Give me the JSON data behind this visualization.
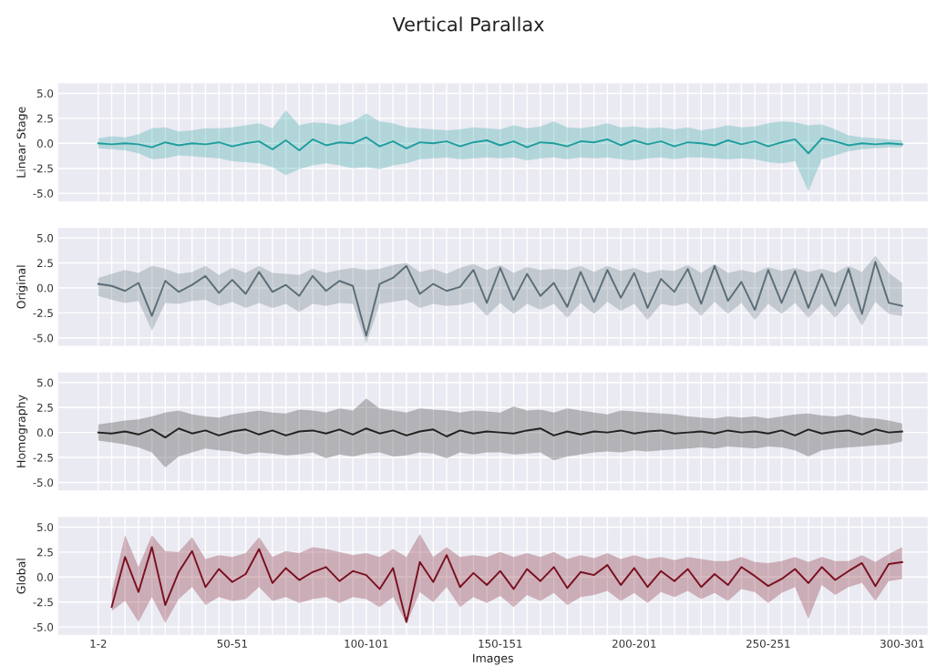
{
  "chart_data": [
    {
      "type": "line",
      "title": "Vertical Parallax",
      "ylabel": "Linear Stage",
      "ylim": [
        -5.8,
        6
      ],
      "yticks": [
        {
          "value": -5,
          "label": "-5.0"
        },
        {
          "value": -2.5,
          "label": "-2.5"
        },
        {
          "value": 0,
          "label": "0.0"
        },
        {
          "value": 2.5,
          "label": "2.5"
        },
        {
          "value": 5,
          "label": "5.0"
        }
      ],
      "tick_labels": "y",
      "grid": true,
      "categories": [
        null,
        null,
        null,
        null,
        null,
        null,
        null,
        null,
        null,
        null,
        null,
        null,
        null,
        null,
        null,
        null,
        null,
        null,
        null,
        null,
        null,
        null,
        null,
        null,
        null,
        null,
        null,
        null,
        null,
        null,
        null,
        null,
        null,
        null,
        null,
        null,
        null,
        null,
        null,
        null,
        null,
        null,
        null,
        null,
        null,
        null,
        null,
        null,
        null,
        null,
        null,
        null,
        null,
        null,
        null,
        null,
        null,
        null,
        null,
        null,
        null
      ],
      "series": [
        {
          "color": "#1f9e9e",
          "values": [
            0,
            -0.1,
            0,
            -0.1,
            -0.4,
            0.1,
            -0.2,
            0,
            -0.1,
            0.1,
            -0.3,
            0,
            0.2,
            -0.6,
            0.3,
            -0.7,
            0.4,
            -0.2,
            0.1,
            0,
            0.6,
            -0.3,
            0.2,
            -0.5,
            0.1,
            0,
            0.2,
            -0.3,
            0.1,
            0.3,
            -0.2,
            0.2,
            -0.4,
            0.1,
            0,
            -0.3,
            0.2,
            0.1,
            0.4,
            -0.2,
            0.3,
            -0.1,
            0.2,
            -0.3,
            0.1,
            0,
            -0.2,
            0.3,
            -0.1,
            0.2,
            -0.3,
            0.1,
            0.4,
            -1.0,
            0.5,
            0.2,
            -0.2,
            0,
            -0.1,
            0,
            -0.1
          ],
          "upper": [
            0.5,
            0.7,
            0.6,
            0.9,
            1.5,
            1.6,
            1.2,
            1.3,
            1.5,
            1.5,
            1.6,
            1.8,
            2.0,
            1.5,
            3.3,
            1.8,
            2.1,
            2.0,
            1.8,
            2.2,
            3.0,
            2.2,
            2.0,
            1.6,
            1.5,
            1.4,
            1.3,
            1.4,
            1.6,
            1.5,
            1.4,
            1.8,
            1.5,
            1.7,
            2.2,
            1.6,
            1.5,
            1.7,
            2.0,
            1.6,
            1.7,
            1.5,
            1.6,
            1.4,
            1.6,
            1.3,
            1.5,
            1.8,
            1.6,
            1.7,
            2.0,
            2.2,
            2.1,
            1.8,
            1.9,
            1.4,
            0.8,
            0.6,
            0.5,
            0.4,
            0.3
          ],
          "lower": [
            -0.5,
            -0.6,
            -0.7,
            -1.0,
            -1.6,
            -1.5,
            -1.2,
            -1.3,
            -1.4,
            -1.5,
            -1.8,
            -1.9,
            -2.0,
            -2.4,
            -3.2,
            -2.6,
            -2.2,
            -2.0,
            -2.2,
            -2.5,
            -2.4,
            -2.6,
            -2.2,
            -2.0,
            -1.6,
            -1.5,
            -1.4,
            -1.6,
            -1.5,
            -1.4,
            -1.5,
            -1.4,
            -1.7,
            -1.5,
            -1.4,
            -1.6,
            -1.4,
            -1.5,
            -1.4,
            -1.6,
            -1.7,
            -1.5,
            -1.4,
            -1.6,
            -1.4,
            -1.4,
            -1.5,
            -1.6,
            -1.5,
            -1.6,
            -1.9,
            -2.0,
            -1.8,
            -4.8,
            -1.6,
            -1.2,
            -0.8,
            -0.6,
            -0.5,
            -0.4,
            -0.4
          ]
        }
      ]
    },
    {
      "type": "line",
      "ylabel": "Original",
      "ylim": [
        -5.8,
        6
      ],
      "yticks": [
        {
          "value": -5,
          "label": "-5.0"
        },
        {
          "value": -2.5,
          "label": "-2.5"
        },
        {
          "value": 0,
          "label": "0.0"
        },
        {
          "value": 2.5,
          "label": "2.5"
        },
        {
          "value": 5,
          "label": "5.0"
        }
      ],
      "tick_labels": "y",
      "grid": true,
      "categories": [
        null,
        null,
        null,
        null,
        null,
        null,
        null,
        null,
        null,
        null,
        null,
        null,
        null,
        null,
        null,
        null,
        null,
        null,
        null,
        null,
        null,
        null,
        null,
        null,
        null,
        null,
        null,
        null,
        null,
        null,
        null,
        null,
        null,
        null,
        null,
        null,
        null,
        null,
        null,
        null,
        null,
        null,
        null,
        null,
        null,
        null,
        null,
        null,
        null,
        null,
        null,
        null,
        null,
        null,
        null,
        null,
        null,
        null,
        null,
        null,
        null
      ],
      "series": [
        {
          "color": "#5b6e78",
          "values": [
            0.4,
            0.2,
            -0.3,
            0.5,
            -2.8,
            0.7,
            -0.4,
            0.3,
            1.2,
            -0.5,
            0.8,
            -0.6,
            1.6,
            -0.4,
            0.3,
            -0.8,
            1.2,
            -0.3,
            0.7,
            0.2,
            -4.8,
            0.4,
            1.0,
            2.2,
            -0.6,
            0.4,
            -0.3,
            0.1,
            1.8,
            -1.5,
            2.0,
            -1.2,
            1.4,
            -0.8,
            0.5,
            -1.9,
            1.6,
            -1.4,
            1.8,
            -1.0,
            1.5,
            -2.0,
            0.9,
            -0.4,
            1.9,
            -1.6,
            2.2,
            -1.3,
            0.6,
            -2.2,
            1.8,
            -1.5,
            1.7,
            -2.0,
            1.4,
            -1.8,
            1.9,
            -2.6,
            2.6,
            -1.5,
            -1.8
          ],
          "upper": [
            1.0,
            1.4,
            1.8,
            1.5,
            2.2,
            1.9,
            1.4,
            1.6,
            2.2,
            1.3,
            2.0,
            1.5,
            2.2,
            1.5,
            1.4,
            1.3,
            1.9,
            1.5,
            1.8,
            2.0,
            1.8,
            1.9,
            2.3,
            2.5,
            1.6,
            1.9,
            1.4,
            2.0,
            2.4,
            1.8,
            2.3,
            1.5,
            2.1,
            1.8,
            1.9,
            1.8,
            2.2,
            1.6,
            2.2,
            1.7,
            2.0,
            1.5,
            1.8,
            1.7,
            2.3,
            1.5,
            2.4,
            1.5,
            1.8,
            1.5,
            2.1,
            1.7,
            2.0,
            1.6,
            1.9,
            1.5,
            2.2,
            1.6,
            3.2,
            1.5,
            0.5
          ],
          "lower": [
            -0.8,
            -1.2,
            -1.5,
            -1.3,
            -4.3,
            -1.5,
            -1.6,
            -1.3,
            -1.2,
            -1.8,
            -1.4,
            -2.0,
            -1.5,
            -2.0,
            -1.6,
            -2.4,
            -1.6,
            -1.8,
            -1.5,
            -1.6,
            -5.6,
            -1.6,
            -1.4,
            -1.2,
            -2.0,
            -1.6,
            -1.8,
            -1.7,
            -1.4,
            -2.8,
            -1.5,
            -2.6,
            -1.6,
            -2.2,
            -1.6,
            -3.0,
            -1.5,
            -2.6,
            -1.4,
            -2.3,
            -1.6,
            -3.2,
            -1.6,
            -1.8,
            -1.5,
            -2.8,
            -1.4,
            -2.6,
            -1.5,
            -3.2,
            -1.6,
            -2.6,
            -1.5,
            -3.0,
            -1.6,
            -3.0,
            -1.5,
            -3.8,
            -1.4,
            -2.6,
            -2.8
          ]
        }
      ]
    },
    {
      "type": "line",
      "ylabel": "Homography",
      "ylim": [
        -5.8,
        6
      ],
      "yticks": [
        {
          "value": -5,
          "label": "-5.0"
        },
        {
          "value": -2.5,
          "label": "-2.5"
        },
        {
          "value": 0,
          "label": "0.0"
        },
        {
          "value": 2.5,
          "label": "2.5"
        },
        {
          "value": 5,
          "label": "5.0"
        }
      ],
      "tick_labels": "y",
      "grid": true,
      "categories": [
        null,
        null,
        null,
        null,
        null,
        null,
        null,
        null,
        null,
        null,
        null,
        null,
        null,
        null,
        null,
        null,
        null,
        null,
        null,
        null,
        null,
        null,
        null,
        null,
        null,
        null,
        null,
        null,
        null,
        null,
        null,
        null,
        null,
        null,
        null,
        null,
        null,
        null,
        null,
        null,
        null,
        null,
        null,
        null,
        null,
        null,
        null,
        null,
        null,
        null,
        null,
        null,
        null,
        null,
        null,
        null,
        null,
        null,
        null,
        null,
        null
      ],
      "series": [
        {
          "color": "#222222",
          "values": [
            0,
            -0.1,
            0.1,
            -0.2,
            0.3,
            -0.5,
            0.4,
            -0.1,
            0.2,
            -0.3,
            0.1,
            0.3,
            -0.2,
            0.2,
            -0.3,
            0.1,
            0.2,
            -0.1,
            0.3,
            -0.2,
            0.4,
            -0.1,
            0.2,
            -0.3,
            0.1,
            0.3,
            -0.4,
            0.2,
            -0.1,
            0.1,
            0,
            -0.1,
            0.2,
            0.4,
            -0.3,
            0.1,
            -0.2,
            0.1,
            0,
            0.2,
            -0.1,
            0.1,
            0.2,
            -0.1,
            0,
            0.1,
            -0.1,
            0.2,
            0,
            0.1,
            -0.1,
            0.2,
            -0.3,
            0.3,
            -0.1,
            0.1,
            0.2,
            -0.2,
            0.3,
            0,
            0.1
          ],
          "upper": [
            0.8,
            1.0,
            1.2,
            1.3,
            1.6,
            2.0,
            2.2,
            1.8,
            1.6,
            1.5,
            1.8,
            2.0,
            2.2,
            2.0,
            1.9,
            2.3,
            2.2,
            2.0,
            2.4,
            2.2,
            3.4,
            2.4,
            2.2,
            2.0,
            2.4,
            2.3,
            2.2,
            2.0,
            2.2,
            2.1,
            2.0,
            2.6,
            2.2,
            2.3,
            2.0,
            2.4,
            2.2,
            2.0,
            1.8,
            2.2,
            2.1,
            2.0,
            1.9,
            1.8,
            1.6,
            1.5,
            1.4,
            1.6,
            1.5,
            1.6,
            1.4,
            1.6,
            1.8,
            1.9,
            1.7,
            1.6,
            1.8,
            1.5,
            1.4,
            1.2,
            0.9
          ],
          "lower": [
            -0.8,
            -1.0,
            -1.2,
            -1.5,
            -2.0,
            -3.5,
            -2.4,
            -2.0,
            -1.6,
            -1.8,
            -1.9,
            -2.2,
            -2.0,
            -2.1,
            -2.3,
            -2.2,
            -2.0,
            -2.6,
            -2.2,
            -2.4,
            -2.1,
            -2.0,
            -2.4,
            -2.3,
            -2.0,
            -2.1,
            -2.6,
            -2.0,
            -2.2,
            -2.0,
            -2.0,
            -2.2,
            -2.1,
            -2.0,
            -2.8,
            -2.4,
            -2.2,
            -2.0,
            -1.9,
            -2.0,
            -1.8,
            -1.9,
            -1.8,
            -1.7,
            -1.6,
            -1.5,
            -1.6,
            -1.4,
            -1.5,
            -1.6,
            -1.4,
            -1.5,
            -1.8,
            -2.4,
            -1.8,
            -1.6,
            -1.5,
            -1.4,
            -1.3,
            -1.2,
            -0.9
          ]
        }
      ]
    },
    {
      "type": "line",
      "ylabel": "Global",
      "xlabel": "Images",
      "ylim": [
        -5.8,
        6
      ],
      "yticks": [
        {
          "value": -5,
          "label": "-5.0"
        },
        {
          "value": -2.5,
          "label": "-2.5"
        },
        {
          "value": 0,
          "label": "0.0"
        },
        {
          "value": 2.5,
          "label": "2.5"
        },
        {
          "value": 5,
          "label": "5.0"
        }
      ],
      "grid": true,
      "categories": [
        "1-2",
        null,
        null,
        null,
        null,
        null,
        null,
        null,
        null,
        null,
        "50-51",
        null,
        null,
        null,
        null,
        null,
        null,
        null,
        null,
        null,
        "100-101",
        null,
        null,
        null,
        null,
        null,
        null,
        null,
        null,
        null,
        "150-151",
        null,
        null,
        null,
        null,
        null,
        null,
        null,
        null,
        null,
        "200-201",
        null,
        null,
        null,
        null,
        null,
        null,
        null,
        null,
        null,
        "250-251",
        null,
        null,
        null,
        null,
        null,
        null,
        null,
        null,
        null,
        "300-301"
      ],
      "series": [
        {
          "color": "#7a1020",
          "values": [
            null,
            -3.0,
            2.0,
            -1.5,
            3.0,
            -2.8,
            0.5,
            2.6,
            -1.0,
            0.8,
            -0.5,
            0.3,
            2.8,
            -0.6,
            0.9,
            -0.3,
            0.5,
            1.0,
            -0.4,
            0.6,
            0.2,
            -1.2,
            0.9,
            -4.5,
            1.5,
            -0.5,
            2.2,
            -1.0,
            0.4,
            -0.8,
            0.6,
            -1.2,
            0.8,
            -0.4,
            1.0,
            -1.1,
            0.5,
            0.2,
            1.2,
            -0.8,
            0.9,
            -1.0,
            0.6,
            -0.4,
            0.8,
            -1.0,
            0.3,
            -0.8,
            1.0,
            0.1,
            -0.9,
            -0.2,
            0.8,
            -0.6,
            1.0,
            -0.3,
            0.6,
            1.4,
            -0.9,
            1.3,
            1.5
          ],
          "upper": [
            null,
            -1.5,
            4.2,
            1.0,
            4.2,
            2.6,
            2.5,
            4.0,
            1.8,
            2.2,
            2.0,
            2.4,
            4.0,
            2.0,
            2.6,
            2.4,
            3.0,
            2.8,
            2.5,
            2.2,
            2.4,
            2.0,
            2.8,
            2.0,
            4.3,
            2.0,
            3.0,
            2.0,
            2.2,
            2.0,
            2.5,
            2.0,
            2.4,
            2.0,
            2.5,
            1.8,
            2.2,
            1.9,
            2.4,
            1.8,
            2.2,
            1.8,
            2.0,
            1.7,
            2.0,
            1.8,
            1.6,
            1.6,
            2.0,
            1.5,
            1.4,
            1.6,
            2.0,
            1.5,
            2.0,
            1.6,
            1.6,
            2.2,
            1.5,
            2.3,
            3.0
          ],
          "lower": [
            null,
            -3.4,
            -2.4,
            -4.5,
            -2.0,
            -4.6,
            -2.2,
            -1.0,
            -2.8,
            -2.0,
            -2.4,
            -2.2,
            -1.0,
            -2.4,
            -2.0,
            -2.6,
            -2.2,
            -2.0,
            -2.6,
            -2.0,
            -2.2,
            -3.0,
            -2.0,
            -4.7,
            -1.5,
            -2.5,
            -1.0,
            -3.0,
            -2.0,
            -2.6,
            -1.9,
            -3.0,
            -1.8,
            -2.4,
            -1.6,
            -2.8,
            -2.0,
            -1.8,
            -1.4,
            -2.4,
            -1.6,
            -2.6,
            -1.5,
            -2.0,
            -1.4,
            -2.2,
            -1.6,
            -2.4,
            -1.2,
            -1.5,
            -2.6,
            -1.6,
            -1.0,
            -4.2,
            -0.8,
            -1.8,
            -1.0,
            -0.6,
            -2.4,
            -0.4,
            -0.2
          ]
        }
      ]
    }
  ]
}
